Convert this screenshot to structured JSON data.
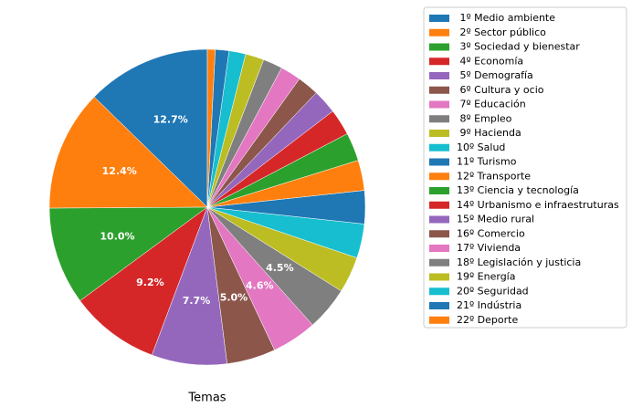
{
  "chart_data": {
    "type": "pie",
    "xlabel": "Temas",
    "categories": [
      " 1º Medio ambiente",
      " 2º Sector público",
      " 3º Sociedad y bienestar",
      " 4º Economía",
      " 5º Demografía",
      " 6º Cultura y ocio",
      " 7º Educación",
      " 8º Empleo",
      " 9º Hacienda",
      "10º Salud",
      "11º Turismo",
      "12º Transporte",
      "13º Ciencia y tecnología",
      "14º Urbanismo e infraestruturas",
      "15º Medio rural",
      "16º Comercio",
      "17º Vivienda",
      "18º Legislación y justicia",
      "19º Energía",
      "20º Seguridad",
      "21º Indústria",
      "22º Deporte"
    ],
    "values": [
      12.7,
      12.4,
      10.0,
      9.2,
      7.7,
      5.0,
      4.6,
      4.5,
      3.7,
      3.5,
      3.4,
      3.1,
      2.9,
      2.7,
      2.5,
      2.2,
      2.1,
      2.0,
      1.9,
      1.7,
      1.4,
      0.8
    ],
    "value_labels": [
      "12.7%",
      "12.4%",
      "10.0%",
      "9.2%",
      "7.7%",
      "5.0%",
      "4.6%",
      "4.5%",
      null,
      null,
      null,
      null,
      null,
      null,
      null,
      null,
      null,
      null,
      null,
      null,
      null,
      null
    ],
    "colors": [
      "#1f77b4",
      "#ff7f0e",
      "#2ca02c",
      "#d62728",
      "#9467bd",
      "#8c564b",
      "#e377c2",
      "#7f7f7f",
      "#bcbd22",
      "#17becf",
      "#1f77b4",
      "#ff7f0e",
      "#2ca02c",
      "#d62728",
      "#9467bd",
      "#8c564b",
      "#e377c2",
      "#7f7f7f",
      "#bcbd22",
      "#17becf",
      "#1f77b4",
      "#ff7f0e"
    ],
    "start_angle": 90,
    "legend": "upper right"
  }
}
